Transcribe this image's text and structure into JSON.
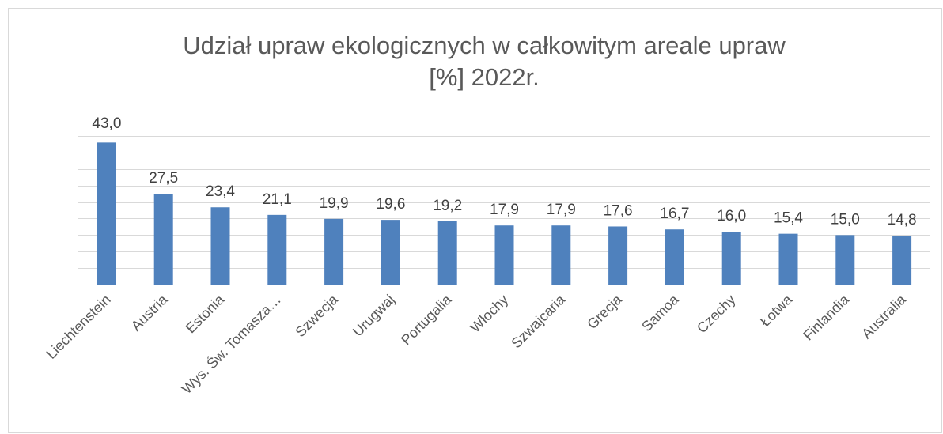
{
  "chart_data": {
    "type": "bar",
    "title": [
      "Udział upraw ekologicznych w całkowitym areale upraw",
      "[%] 2022r."
    ],
    "categories": [
      "Liechtenstein",
      "Austria",
      "Estonia",
      "Wys. Św. Tomasza…",
      "Szwecja",
      "Urugwaj",
      "Portugalia",
      "Włochy",
      "Szwajcaria",
      "Grecja",
      "Samoa",
      "Czechy",
      "Łotwa",
      "Finlandia",
      "Australia"
    ],
    "values": [
      43.0,
      27.5,
      23.4,
      21.1,
      19.9,
      19.6,
      19.2,
      17.9,
      17.9,
      17.6,
      16.7,
      16.0,
      15.4,
      15.0,
      14.8
    ],
    "value_labels": [
      "43,0",
      "27,5",
      "23,4",
      "21,1",
      "19,9",
      "19,6",
      "19,2",
      "17,9",
      "17,9",
      "17,6",
      "16,7",
      "16,0",
      "15,4",
      "15,0",
      "14,8"
    ],
    "color": "#4f81bd",
    "ylim": [
      0,
      45
    ],
    "yticks": [
      0,
      5,
      10,
      15,
      20,
      25,
      30,
      35,
      40,
      45
    ],
    "grid": true
  }
}
